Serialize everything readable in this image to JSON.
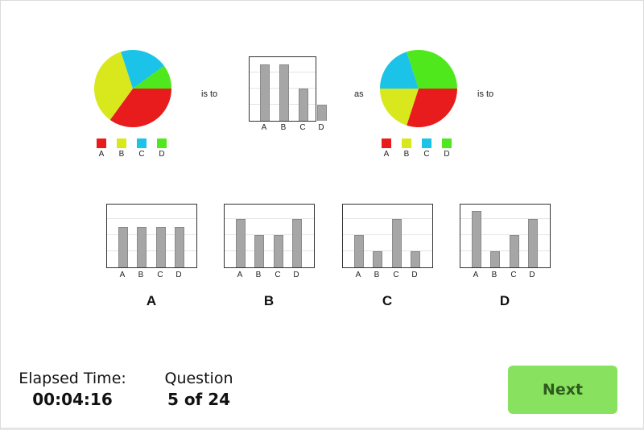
{
  "question": {
    "connector_1": "is to",
    "connector_2": "as",
    "connector_3": "is to",
    "colors": {
      "A": "#e81c1c",
      "B": "#d8e81c",
      "C": "#1cc3e8",
      "D": "#4fe81c"
    },
    "legend_labels": [
      "A",
      "B",
      "C",
      "D"
    ]
  },
  "chart_data": [
    {
      "id": "prompt-pie-1",
      "type": "pie",
      "categories": [
        "A",
        "B",
        "C",
        "D"
      ],
      "values": [
        35,
        35,
        20,
        10
      ],
      "colors": [
        "#e81c1c",
        "#d8e81c",
        "#1cc3e8",
        "#4fe81c"
      ]
    },
    {
      "id": "prompt-bar-1",
      "type": "bar",
      "categories": [
        "A",
        "B",
        "C",
        "D"
      ],
      "values": [
        3.5,
        3.5,
        2,
        1
      ],
      "ylim": [
        0,
        4
      ],
      "grid": true
    },
    {
      "id": "prompt-pie-2",
      "type": "pie",
      "categories": [
        "A",
        "B",
        "C",
        "D"
      ],
      "values": [
        30,
        20,
        20,
        30
      ],
      "colors": [
        "#e81c1c",
        "#d8e81c",
        "#1cc3e8",
        "#4fe81c"
      ]
    },
    {
      "id": "option-A",
      "type": "bar",
      "categories": [
        "A",
        "B",
        "C",
        "D"
      ],
      "values": [
        2.5,
        2.5,
        2.5,
        2.5
      ],
      "ylim": [
        0,
        4
      ],
      "grid": true
    },
    {
      "id": "option-B",
      "type": "bar",
      "categories": [
        "A",
        "B",
        "C",
        "D"
      ],
      "values": [
        3,
        2,
        2,
        3
      ],
      "ylim": [
        0,
        4
      ],
      "grid": true
    },
    {
      "id": "option-C",
      "type": "bar",
      "categories": [
        "A",
        "B",
        "C",
        "D"
      ],
      "values": [
        2,
        1,
        3,
        1
      ],
      "ylim": [
        0,
        4
      ],
      "grid": true
    },
    {
      "id": "option-D",
      "type": "bar",
      "categories": [
        "A",
        "B",
        "C",
        "D"
      ],
      "values": [
        3.5,
        1,
        2,
        3
      ],
      "ylim": [
        0,
        4
      ],
      "grid": true
    }
  ],
  "options": [
    {
      "label": "A"
    },
    {
      "label": "B"
    },
    {
      "label": "C"
    },
    {
      "label": "D"
    }
  ],
  "footer": {
    "elapsed_label": "Elapsed Time:",
    "elapsed_value": "00:04:16",
    "question_label": "Question",
    "question_value": "5 of 24",
    "next_label": "Next"
  }
}
